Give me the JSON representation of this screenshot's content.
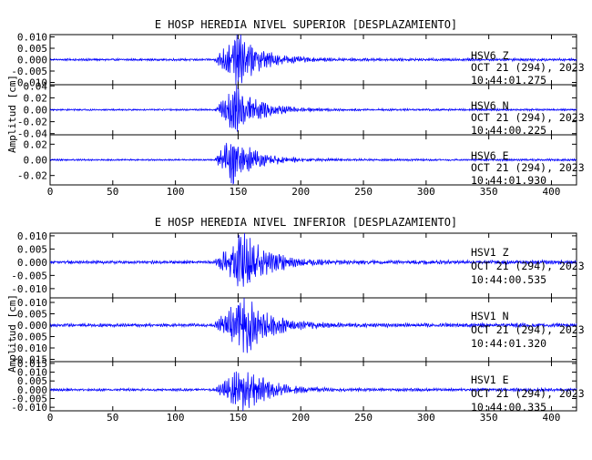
{
  "chart_data": [
    {
      "type": "line",
      "title": "E HOSP HEREDIA NIVEL SUPERIOR [DESPLAZAMIENTO]",
      "ylabel": "Amplitud [cm]",
      "xlabel": "",
      "xlim": [
        0,
        420
      ],
      "x_ticks": [
        0,
        50,
        100,
        150,
        200,
        250,
        300,
        350,
        400
      ],
      "grid": false,
      "line_color": "#0000ff",
      "series": [
        {
          "station": "HSV6",
          "component": "Z",
          "date": "OCT 21 (294), 2023",
          "time": "10:44:01.275",
          "ylim": [
            -0.011,
            0.011
          ],
          "y_ticks": [
            -0.01,
            -0.005,
            0.0,
            0.005,
            0.01
          ],
          "y_tick_labels": [
            "-0.010",
            "-0.005",
            "0.000",
            "0.005",
            "0.010"
          ],
          "onset_s": 131,
          "peak_s": 150,
          "pre_event_amp": 0.0004,
          "peak_amp": 0.01
        },
        {
          "station": "HSV6",
          "component": "N",
          "date": "OCT 21 (294), 2023",
          "time": "10:44:00.225",
          "ylim": [
            -0.042,
            0.042
          ],
          "y_ticks": [
            -0.04,
            -0.02,
            0.0,
            0.02,
            0.04
          ],
          "y_tick_labels": [
            "-0.04",
            "-0.02",
            "0.00",
            "0.02",
            "0.04"
          ],
          "onset_s": 131,
          "peak_s": 148,
          "pre_event_amp": 0.0012,
          "peak_amp": 0.035
        },
        {
          "station": "HSV6",
          "component": "E",
          "date": "OCT 21 (294), 2023",
          "time": "10:44:01.930",
          "ylim": [
            -0.032,
            0.032
          ],
          "y_ticks": [
            -0.02,
            0.0,
            0.02
          ],
          "y_tick_labels": [
            "-0.02",
            "0.00",
            "0.02"
          ],
          "onset_s": 131,
          "peak_s": 145,
          "pre_event_amp": 0.0009,
          "peak_amp": 0.028
        }
      ]
    },
    {
      "type": "line",
      "title": "E HOSP HEREDIA NIVEL INFERIOR [DESPLAZAMIENTO]",
      "ylabel": "Amplitud [cm]",
      "xlabel": "",
      "xlim": [
        0,
        420
      ],
      "x_ticks": [
        0,
        50,
        100,
        150,
        200,
        250,
        300,
        350,
        400
      ],
      "grid": false,
      "line_color": "#0000ff",
      "series": [
        {
          "station": "HSV1",
          "component": "Z",
          "date": "OCT 21 (294), 2023",
          "time": "10:44:00.535",
          "ylim": [
            -0.0135,
            0.011
          ],
          "y_ticks": [
            -0.01,
            -0.005,
            0.0,
            0.005,
            0.01
          ],
          "y_tick_labels": [
            "-0.010",
            "-0.005",
            "0.000",
            "0.005",
            "0.010"
          ],
          "onset_s": 131,
          "peak_s": 155,
          "pre_event_amp": 0.0005,
          "peak_amp": 0.0105
        },
        {
          "station": "HSV1",
          "component": "N",
          "date": "OCT 21 (294), 2023",
          "time": "10:44:01.320",
          "ylim": [
            -0.016,
            0.012
          ],
          "y_ticks": [
            -0.015,
            -0.01,
            -0.005,
            0.0,
            0.005,
            0.01
          ],
          "y_tick_labels": [
            "-0.015",
            "-0.010",
            "-0.005",
            "0.000",
            "0.005",
            "0.010"
          ],
          "onset_s": 131,
          "peak_s": 155,
          "pre_event_amp": 0.0006,
          "peak_amp": 0.0125
        },
        {
          "station": "HSV1",
          "component": "E",
          "date": "OCT 21 (294), 2023",
          "time": "10:44:00.335",
          "ylim": [
            -0.012,
            0.016
          ],
          "y_ticks": [
            -0.01,
            -0.005,
            0.0,
            0.005,
            0.01,
            0.015
          ],
          "y_tick_labels": [
            "-0.010",
            "-0.005",
            "0.000",
            "0.005",
            "0.010",
            "0.015"
          ],
          "onset_s": 131,
          "peak_s": 155,
          "pre_event_amp": 0.0006,
          "peak_amp": 0.012
        }
      ]
    }
  ]
}
